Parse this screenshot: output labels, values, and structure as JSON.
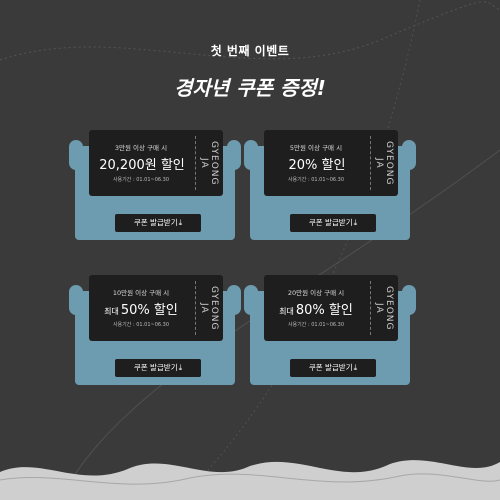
{
  "header": {
    "eyebrow": "첫 번째 이벤트",
    "headline": "경자년 쿠폰 증정!"
  },
  "colors": {
    "background": "#3a3a3a",
    "ticket": "#1e1e1e",
    "card_backing": "#6d9bb0",
    "bottom_wave": "#cfcfcf"
  },
  "coupons": [
    {
      "condition": "3만원 이상 구매 시",
      "prefix": "",
      "amount": "20,200원 할인",
      "period": "사용기간 : 01.01~06.30",
      "brand": "GYEONG JA",
      "button": "쿠폰 발급받기",
      "button_icon": "download-icon"
    },
    {
      "condition": "5만원 이상 구매 시",
      "prefix": "",
      "amount": "20% 할인",
      "period": "사용기간 : 01.01~06.30",
      "brand": "GYEONG JA",
      "button": "쿠폰 발급받기",
      "button_icon": "download-icon"
    },
    {
      "condition": "10만원 이상 구매 시",
      "prefix": "최대",
      "amount": "50% 할인",
      "period": "사용기간 : 01.01~06.30",
      "brand": "GYEONG JA",
      "button": "쿠폰 발급받기",
      "button_icon": "download-icon"
    },
    {
      "condition": "20만원 이상 구매 시",
      "prefix": "최대",
      "amount": "80% 할인",
      "period": "사용기간 : 01.01~06.30",
      "brand": "GYEONG JA",
      "button": "쿠폰 발급받기",
      "button_icon": "download-icon"
    }
  ]
}
